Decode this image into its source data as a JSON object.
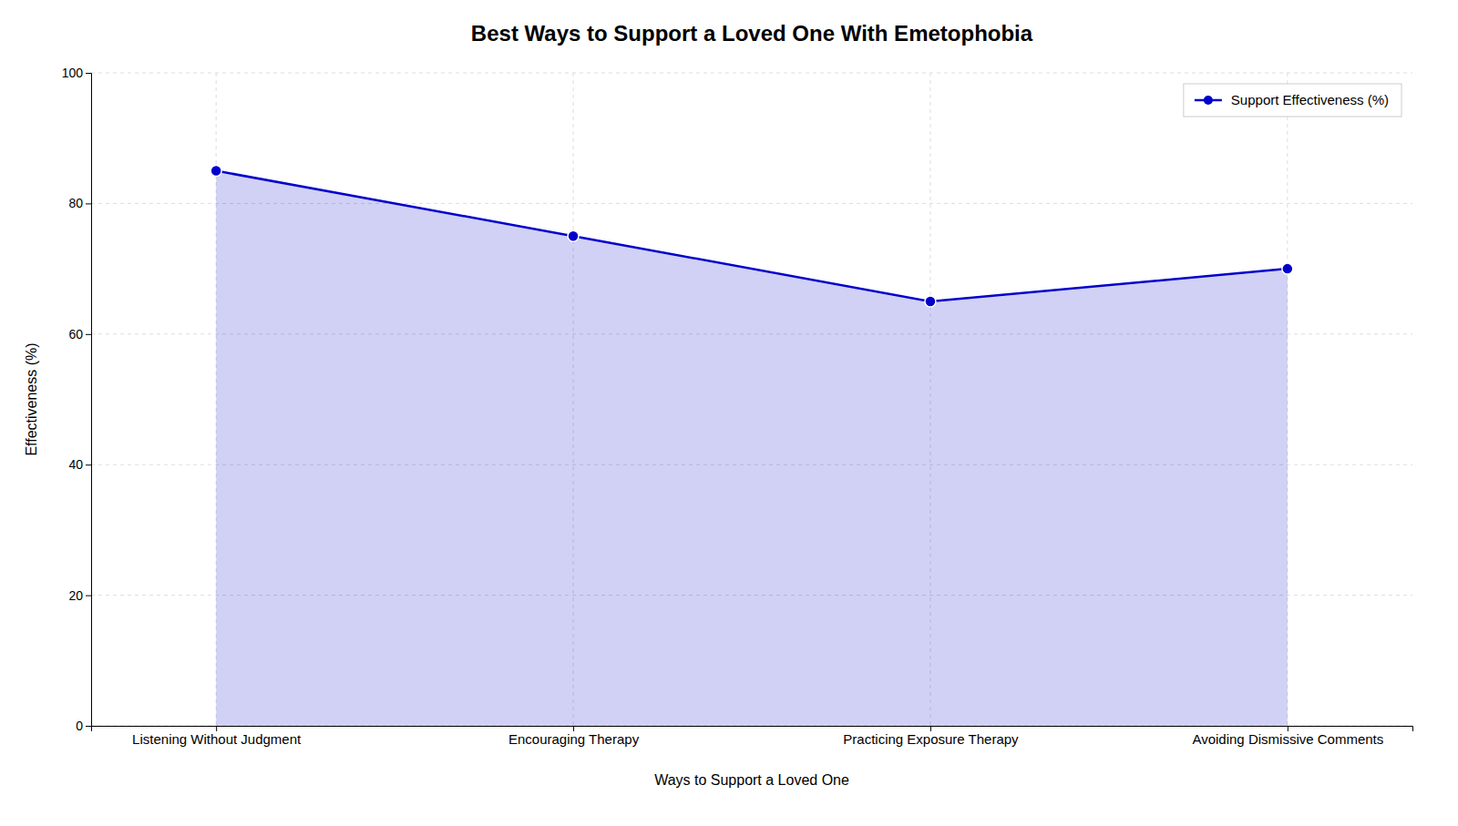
{
  "chart_data": {
    "type": "area",
    "title": "Best Ways to Support a Loved One With Emetophobia",
    "xlabel": "Ways to Support a Loved One",
    "ylabel": "Effectiveness (%)",
    "categories": [
      "Listening Without Judgment",
      "Encouraging Therapy",
      "Practicing Exposure Therapy",
      "Avoiding Dismissive Comments"
    ],
    "series": [
      {
        "name": "Support Effectiveness (%)",
        "color": "#0000CC",
        "marker": "circle",
        "values": [
          85,
          75,
          65,
          70
        ]
      }
    ],
    "ylim": [
      0,
      100
    ],
    "yticks": [
      0,
      20,
      40,
      60,
      80,
      100
    ],
    "grid": true,
    "legend": "upper right"
  }
}
